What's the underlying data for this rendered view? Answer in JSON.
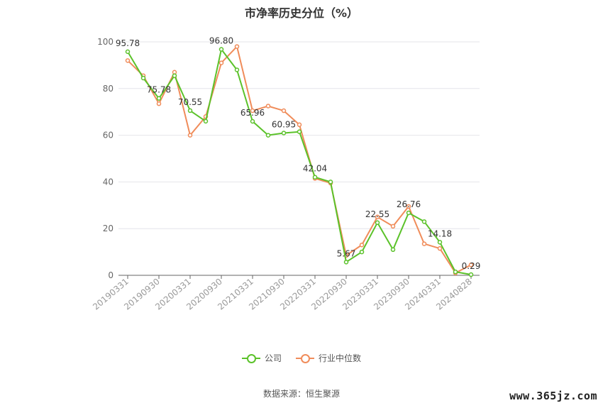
{
  "chart_data": {
    "type": "line",
    "title": "市净率历史分位（%）",
    "xlabel": "",
    "ylabel": "",
    "ylim": [
      0,
      100
    ],
    "yticks": [
      0,
      20,
      40,
      60,
      80,
      100
    ],
    "x_ticks": [
      "20190331",
      "20190930",
      "20200331",
      "20200930",
      "20210331",
      "20210930",
      "20220331",
      "20220930",
      "20230331",
      "20230930",
      "20240331",
      "20240828"
    ],
    "grid": true,
    "legend_position": "bottom",
    "series": [
      {
        "name": "公司",
        "color": "#5bc22a",
        "values": [
          95.78,
          84.5,
          75.78,
          85.5,
          70.55,
          66.0,
          96.8,
          88.0,
          65.96,
          60.0,
          60.95,
          61.5,
          42.04,
          40.0,
          5.67,
          10.0,
          22.55,
          11.0,
          26.76,
          23.0,
          14.18,
          1.5,
          0.29
        ]
      },
      {
        "name": "行业中位数",
        "color": "#f08c5a",
        "values": [
          92.0,
          85.5,
          73.5,
          87.0,
          60.0,
          68.0,
          91.0,
          98.0,
          70.5,
          72.5,
          70.5,
          64.5,
          41.5,
          39.5,
          8.5,
          13.0,
          25.0,
          21.0,
          29.5,
          13.5,
          11.5,
          1.0,
          4.5
        ]
      }
    ],
    "data_labels": [
      {
        "index": 0,
        "text": "95.78"
      },
      {
        "index": 2,
        "text": "75.78"
      },
      {
        "index": 4,
        "text": "70.55"
      },
      {
        "index": 6,
        "text": "96.80"
      },
      {
        "index": 8,
        "text": "65.96"
      },
      {
        "index": 10,
        "text": "60.95"
      },
      {
        "index": 12,
        "text": "42.04"
      },
      {
        "index": 14,
        "text": "5.67"
      },
      {
        "index": 16,
        "text": "22.55"
      },
      {
        "index": 18,
        "text": "26.76"
      },
      {
        "index": 20,
        "text": "14.18"
      },
      {
        "index": 22,
        "text": "0.29"
      }
    ]
  },
  "source_text": "数据来源：恒生聚源",
  "watermark_text": "www.365jz.com"
}
